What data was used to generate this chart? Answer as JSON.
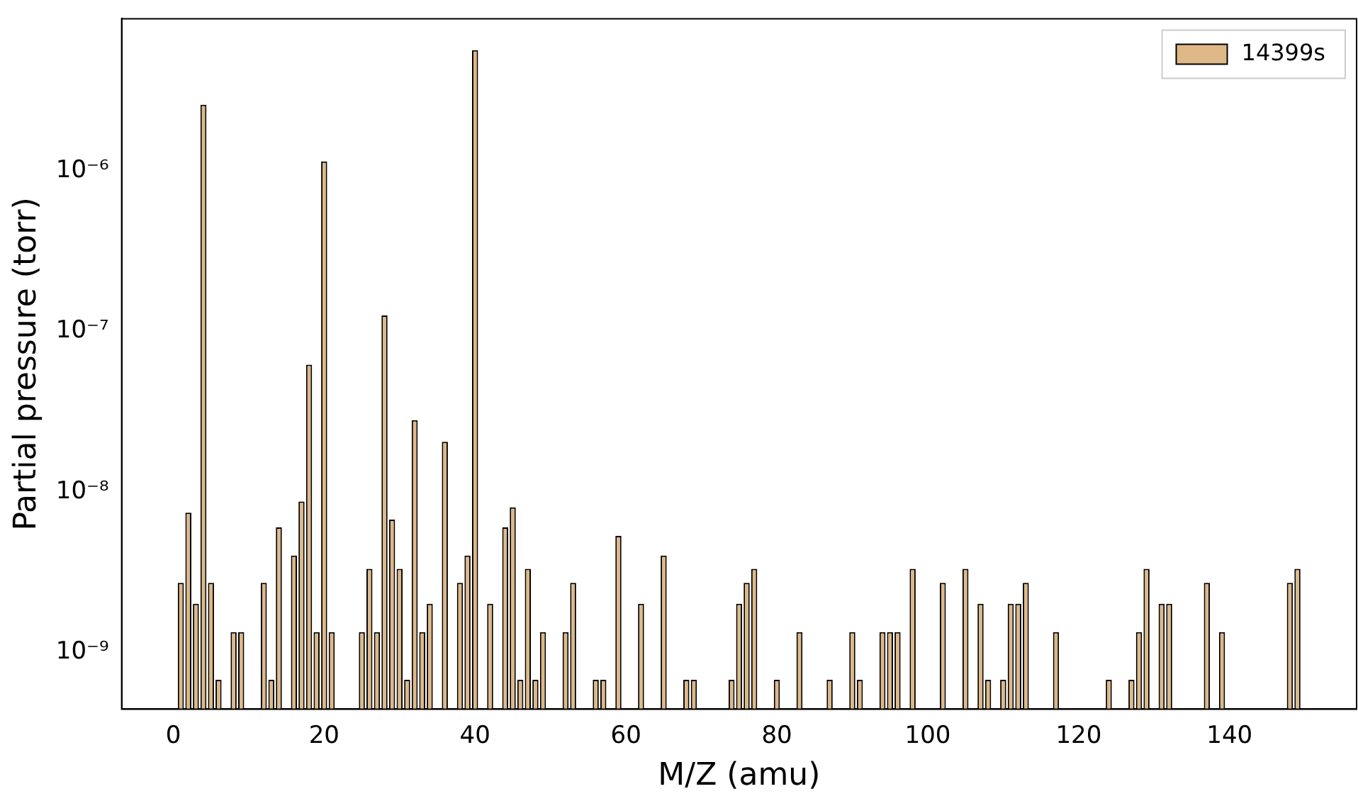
{
  "chart_data": {
    "type": "bar",
    "xlabel": "M/Z (amu)",
    "ylabel": "Partial pressure (torr)",
    "log": "y",
    "grid": false,
    "legend": "top right",
    "x": [
      1,
      2,
      3,
      4,
      5,
      6,
      8,
      9,
      12,
      13,
      14,
      16,
      17,
      18,
      19,
      20,
      21,
      25,
      26,
      27,
      28,
      29,
      30,
      31,
      32,
      33,
      34,
      36,
      38,
      39,
      40,
      42,
      44,
      45,
      46,
      47,
      48,
      49,
      52,
      53,
      56,
      57,
      59,
      62,
      65,
      68,
      69,
      74,
      75,
      76,
      77,
      80,
      83,
      87,
      90,
      91,
      94,
      95,
      96,
      98,
      102,
      105,
      107,
      108,
      110,
      111,
      112,
      113,
      117,
      124,
      127,
      128,
      129,
      131,
      132,
      137,
      139,
      148,
      149
    ],
    "series": [
      {
        "name": "14399s",
        "color": "#deb887",
        "values": [
          2.7e-09,
          7.4e-09,
          2e-09,
          2.6e-06,
          2.7e-09,
          6.7e-10,
          1.33e-09,
          1.33e-09,
          2.7e-09,
          6.7e-10,
          6e-09,
          4e-09,
          8.7e-09,
          6.2e-08,
          1.33e-09,
          1.15e-06,
          1.33e-09,
          1.33e-09,
          3.3e-09,
          1.33e-09,
          1.26e-07,
          6.7e-09,
          3.3e-09,
          6.7e-10,
          2.8e-08,
          1.33e-09,
          2e-09,
          2.05e-08,
          2.7e-09,
          4e-09,
          5.7e-06,
          2e-09,
          6e-09,
          8e-09,
          6.7e-10,
          3.3e-09,
          6.7e-10,
          1.33e-09,
          1.33e-09,
          2.7e-09,
          6.7e-10,
          6.7e-10,
          5.3e-09,
          2e-09,
          4e-09,
          6.7e-10,
          6.7e-10,
          6.7e-10,
          2e-09,
          2.7e-09,
          3.3e-09,
          6.7e-10,
          1.33e-09,
          6.7e-10,
          1.33e-09,
          6.7e-10,
          1.33e-09,
          1.33e-09,
          1.33e-09,
          3.3e-09,
          2.7e-09,
          3.3e-09,
          2e-09,
          6.7e-10,
          6.7e-10,
          2e-09,
          2e-09,
          2.7e-09,
          1.33e-09,
          6.7e-10,
          6.7e-10,
          1.33e-09,
          3.3e-09,
          2e-09,
          2e-09,
          2.7e-09,
          1.33e-09,
          2.7e-09,
          3.3e-09
        ]
      }
    ],
    "xlim": [
      -6.84,
      156.84
    ],
    "xticks": [
      0,
      20,
      40,
      60,
      80,
      100,
      120,
      140
    ],
    "ylim": [
      4.4e-10,
      8.95e-06
    ],
    "yticks": [
      {
        "value": 1e-09,
        "label": "10⁻⁹"
      },
      {
        "value": 1e-08,
        "label": "10⁻⁸"
      },
      {
        "value": 1e-07,
        "label": "10⁻⁷"
      },
      {
        "value": 1e-06,
        "label": "10⁻⁶"
      }
    ]
  }
}
